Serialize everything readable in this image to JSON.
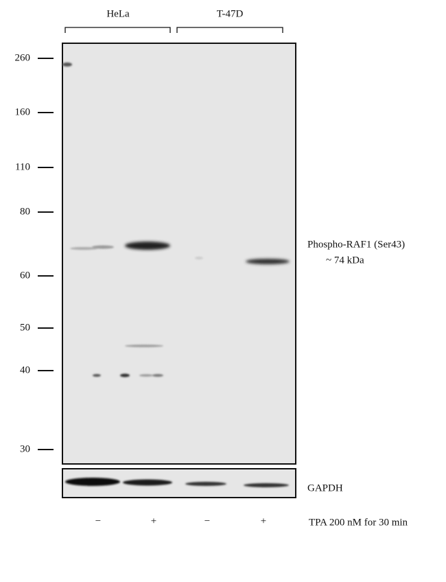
{
  "groups": [
    "HeLa",
    "T-47D"
  ],
  "markers": [
    260,
    160,
    110,
    80,
    60,
    50,
    40,
    30
  ],
  "band_label": {
    "name": "Phospho-RAF1 (Ser43)",
    "size": "~ 74 kDa"
  },
  "loading_control": "GAPDH",
  "treatment": {
    "lanes": [
      "−",
      "+",
      "−",
      "+"
    ],
    "label": "TPA 200 nM for 30 min"
  }
}
